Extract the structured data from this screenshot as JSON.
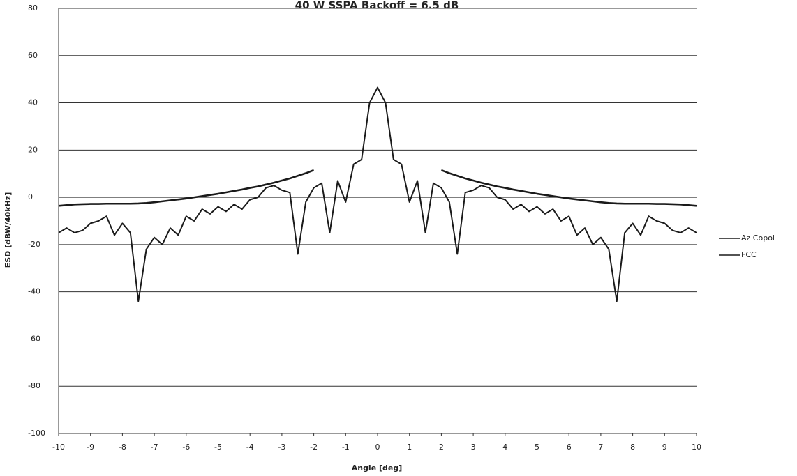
{
  "chart_data": {
    "type": "line",
    "title": "40 W SSPA Backoff  =  6.5 dB",
    "x_label": "Angle [deg]",
    "y_label": "ESD [dBW/40kHz]",
    "x": [
      -10,
      -9.75,
      -9.5,
      -9.25,
      -9,
      -8.75,
      -8.5,
      -8.25,
      -8,
      -7.75,
      -7.5,
      -7.25,
      -7,
      -6.75,
      -6.5,
      -6.25,
      -6,
      -5.75,
      -5.5,
      -5.25,
      -5,
      -4.75,
      -4.5,
      -4.25,
      -4,
      -3.75,
      -3.5,
      -3.25,
      -3,
      -2.75,
      -2.5,
      -2.25,
      -2,
      -1.75,
      -1.5,
      -1.25,
      -1,
      -0.75,
      -0.5,
      -0.25,
      0,
      0.25,
      0.5,
      0.75,
      1,
      1.25,
      1.5,
      1.75,
      2,
      2.25,
      2.5,
      2.75,
      3,
      3.25,
      3.5,
      3.75,
      4,
      4.25,
      4.5,
      4.75,
      5,
      5.25,
      5.5,
      5.75,
      6,
      6.25,
      6.5,
      6.75,
      7,
      7.25,
      7.5,
      7.75,
      8,
      8.25,
      8.5,
      8.75,
      9,
      9.25,
      9.5,
      9.75,
      10
    ],
    "series": [
      {
        "name": "Az Copol",
        "color": "#1a1a1a",
        "values": [
          -15,
          -13,
          -15,
          -14,
          -11,
          -10,
          -8,
          -16,
          -11,
          -15,
          -44,
          -22,
          -17,
          -20,
          -13,
          -16,
          -8,
          -10,
          -5,
          -7,
          -4,
          -6,
          -3,
          -5,
          -1,
          0,
          4,
          5,
          3,
          2,
          -24,
          -2,
          4,
          6,
          -15,
          7,
          -2,
          14,
          16,
          40,
          46.5,
          40,
          16,
          14,
          -2,
          7,
          -15,
          6,
          4,
          -2,
          -24,
          2,
          3,
          5,
          4,
          0,
          -1,
          -5,
          -3,
          -6,
          -4,
          -7,
          -5,
          -10,
          -8,
          -16,
          -13,
          -20,
          -17,
          -22,
          -44,
          -15,
          -11,
          -16,
          -8,
          -10,
          -11,
          -14,
          -15,
          -13,
          -15
        ]
      },
      {
        "name": "FCC",
        "color": "#1a1a1a",
        "values": [
          -3.6,
          -3.3,
          -3.0,
          -2.9,
          -2.8,
          -2.8,
          -2.7,
          -2.7,
          -2.7,
          -2.7,
          -2.6,
          -2.4,
          -2.1,
          -1.7,
          -1.3,
          -0.9,
          -0.5,
          0,
          0.5,
          1.0,
          1.5,
          2.1,
          2.7,
          3.3,
          4.0,
          4.6,
          5.4,
          6.2,
          7.1,
          8.0,
          9.1,
          10.2,
          11.5,
          null,
          null,
          null,
          null,
          null,
          null,
          null,
          null,
          null,
          null,
          null,
          null,
          null,
          null,
          null,
          11.5,
          10.2,
          9.1,
          8.0,
          7.1,
          6.2,
          5.4,
          4.6,
          4.0,
          3.3,
          2.7,
          2.1,
          1.5,
          1.0,
          0.5,
          0,
          -0.5,
          -0.9,
          -1.3,
          -1.7,
          -2.1,
          -2.4,
          -2.6,
          -2.7,
          -2.7,
          -2.7,
          -2.7,
          -2.8,
          -2.8,
          -2.9,
          -3.0,
          -3.3,
          -3.6
        ]
      }
    ],
    "xlim": [
      -10,
      10
    ],
    "ylim": [
      -100,
      80
    ],
    "xticks": [
      -10,
      -9,
      -8,
      -7,
      -6,
      -5,
      -4,
      -3,
      -2,
      -1,
      0,
      1,
      2,
      3,
      4,
      5,
      6,
      7,
      8,
      9,
      10
    ],
    "yticks": [
      -100,
      -80,
      -60,
      -40,
      -20,
      0,
      20,
      40,
      60,
      80
    ],
    "grid": true,
    "legend": "right"
  }
}
